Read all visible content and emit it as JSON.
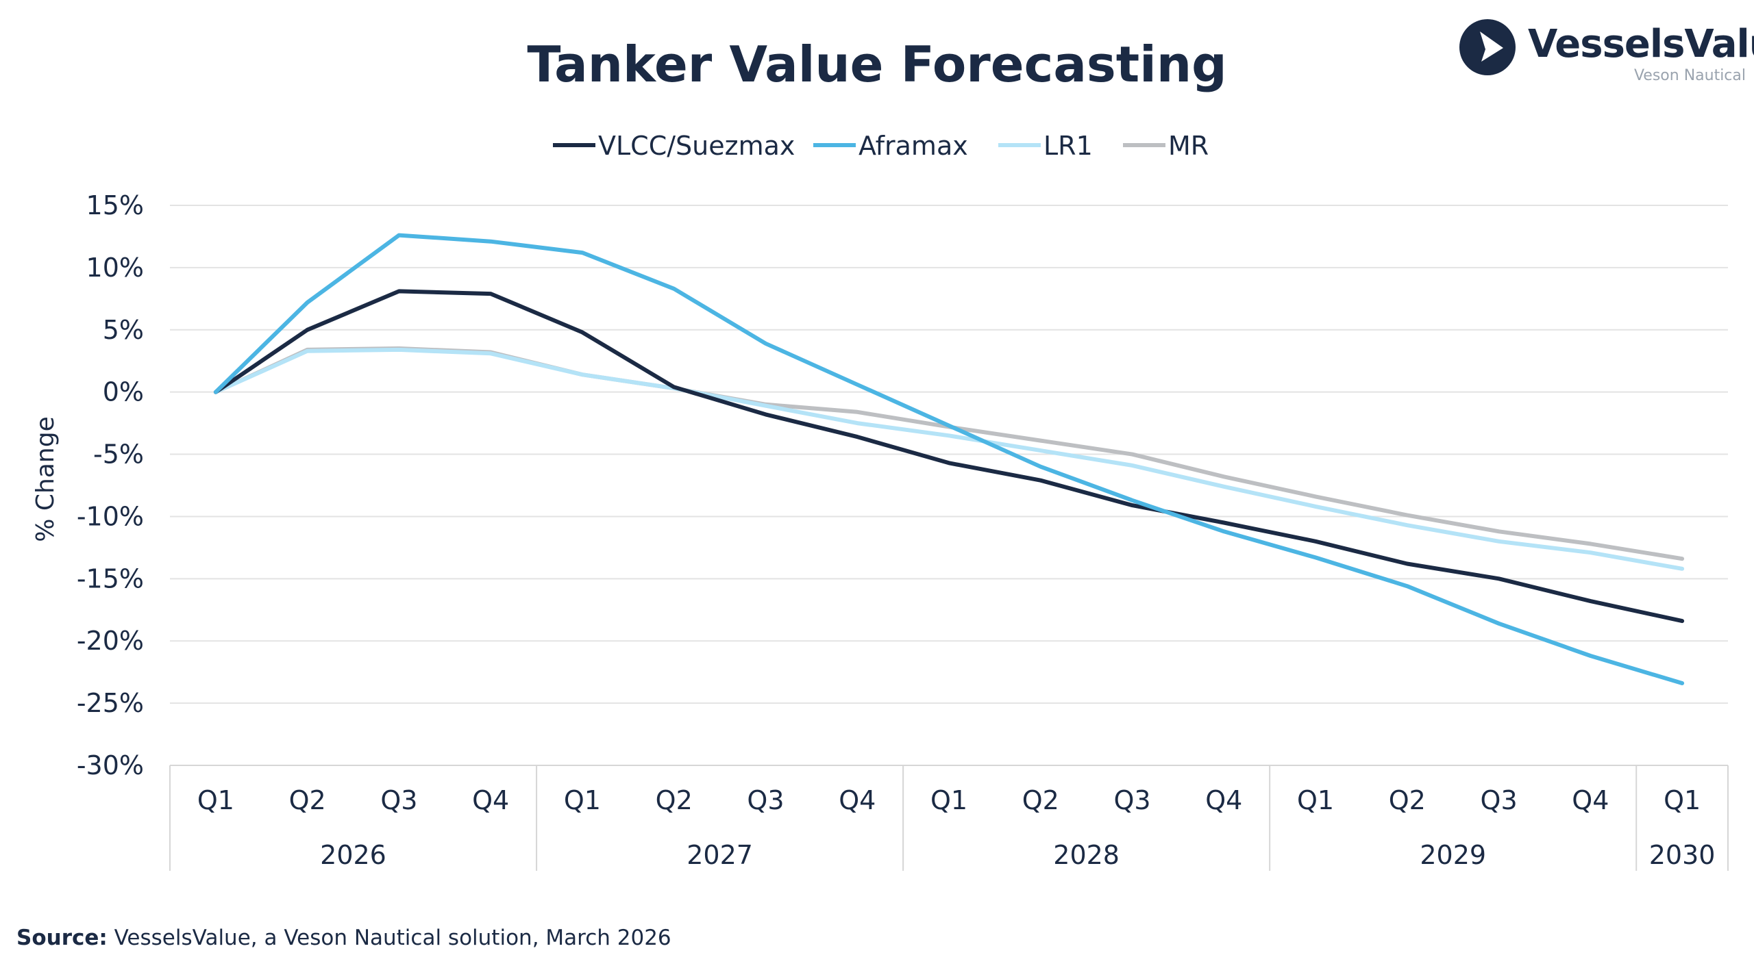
{
  "logo": {
    "name": "VesselsValue",
    "sub": "Veson Nautical",
    "mark_color": "#1b2a44"
  },
  "source": {
    "label": "Source:",
    "text": " VesselsValue, a Veson Nautical solution, March 2026"
  },
  "chart_data": {
    "type": "line",
    "title": "Tanker Value Forecasting",
    "ylabel": "% Change",
    "xlabel": "",
    "ylim": [
      -30,
      15
    ],
    "yticks": [
      15,
      10,
      5,
      0,
      -5,
      -10,
      -15,
      -20,
      -25,
      -30
    ],
    "ytick_labels": [
      "15%",
      "10%",
      "5%",
      "0%",
      "-5%",
      "-10%",
      "-15%",
      "-20%",
      "-25%",
      "-30%"
    ],
    "grid": true,
    "legend": "top-center",
    "categories": [
      "Q1",
      "Q2",
      "Q3",
      "Q4",
      "Q1",
      "Q2",
      "Q3",
      "Q4",
      "Q1",
      "Q2",
      "Q3",
      "Q4",
      "Q1",
      "Q2",
      "Q3",
      "Q4",
      "Q1"
    ],
    "year_groups": [
      {
        "label": "2026",
        "count": 4
      },
      {
        "label": "2027",
        "count": 4
      },
      {
        "label": "2028",
        "count": 4
      },
      {
        "label": "2029",
        "count": 4
      },
      {
        "label": "2030",
        "count": 1
      }
    ],
    "series": [
      {
        "name": "VLCC/Suezmax",
        "color": "#1b2a44",
        "values": [
          0,
          5.0,
          8.1,
          7.9,
          4.8,
          0.4,
          -1.8,
          -3.6,
          -5.7,
          -7.1,
          -9.1,
          -10.5,
          -12.0,
          -13.8,
          -15.0,
          -16.8,
          -18.4
        ]
      },
      {
        "name": "Aframax",
        "color": "#4cb5e3",
        "values": [
          0,
          7.2,
          12.6,
          12.1,
          11.2,
          8.3,
          3.9,
          0.6,
          -2.7,
          -6.0,
          -8.7,
          -11.2,
          -13.3,
          -15.6,
          -18.6,
          -21.2,
          -23.4
        ]
      },
      {
        "name": "LR1",
        "color": "#b4e3f7",
        "values": [
          0,
          3.3,
          3.4,
          3.1,
          1.4,
          0.3,
          -1.1,
          -2.5,
          -3.5,
          -4.7,
          -5.9,
          -7.6,
          -9.2,
          -10.7,
          -12.0,
          -12.9,
          -14.2
        ]
      },
      {
        "name": "MR",
        "color": "#bdbfc2",
        "values": [
          0,
          3.4,
          3.5,
          3.2,
          1.4,
          0.3,
          -1.0,
          -1.6,
          -2.8,
          -3.9,
          -5.0,
          -6.8,
          -8.4,
          -9.9,
          -11.2,
          -12.2,
          -13.4
        ]
      }
    ]
  }
}
